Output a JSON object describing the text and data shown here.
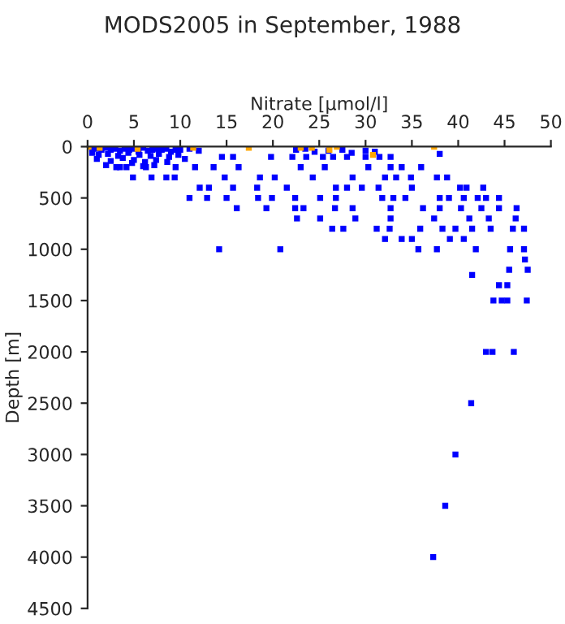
{
  "chart_data": {
    "type": "scatter",
    "title": "MODS2005 in September, 1988",
    "xlabel": "Nitrate [µmol/l]",
    "ylabel": "Depth [m]",
    "xlim": [
      0,
      50
    ],
    "xticks": [
      0,
      5,
      10,
      15,
      20,
      25,
      30,
      35,
      40,
      45,
      50
    ],
    "ylim": [
      4500,
      0
    ],
    "yticks": [
      0,
      500,
      1000,
      1500,
      2000,
      2500,
      3000,
      3500,
      4000,
      4500
    ],
    "marker": "square",
    "grid": false,
    "legend": false,
    "series": [
      {
        "color": "#0000ff",
        "x": [
          0.5,
          1.0,
          1.5,
          2.0,
          2.5,
          3.0,
          3.5,
          4.0,
          4.5,
          5.0,
          5.5,
          6.0,
          6.5,
          7.0,
          7.5,
          8.0,
          8.5,
          9.0,
          9.5,
          10.0,
          11.0,
          12.0,
          0.5,
          1.2,
          2.2,
          3.3,
          4.4,
          5.6,
          6.8,
          7.7,
          8.8,
          9.8,
          1.0,
          2.5,
          3.8,
          5.0,
          6.2,
          7.4,
          8.6,
          10.5,
          22.5,
          23.5,
          24.5,
          26.0,
          27.5,
          28.5,
          30.0,
          31.0,
          38.0,
          2.0,
          3.5,
          4.8,
          6.0,
          7.2,
          14.5,
          15.7,
          19.8,
          22.1,
          23.6,
          25.4,
          26.5,
          28.0,
          30.0,
          31.5,
          32.7,
          3.1,
          4.2,
          6.3,
          9.5,
          11.6,
          13.6,
          16.3,
          23.0,
          25.6,
          30.3,
          32.7,
          33.9,
          36.0,
          4.9,
          6.9,
          8.5,
          9.4,
          14.8,
          18.6,
          20.2,
          24.3,
          28.6,
          32.1,
          33.3,
          34.9,
          37.7,
          38.8,
          12.1,
          13.1,
          15.7,
          18.3,
          21.5,
          26.8,
          28.0,
          29.6,
          31.4,
          35.0,
          40.2,
          40.9,
          42.7,
          11.0,
          12.9,
          15.0,
          18.4,
          19.9,
          22.4,
          25.1,
          26.8,
          31.8,
          33.0,
          34.3,
          38.0,
          39.0,
          40.6,
          42.1,
          43.0,
          44.4,
          16.1,
          19.3,
          22.4,
          23.3,
          26.7,
          28.6,
          32.7,
          36.2,
          38.0,
          40.3,
          42.5,
          44.4,
          46.3,
          22.6,
          25.1,
          28.9,
          32.7,
          37.4,
          41.2,
          43.3,
          46.2,
          26.4,
          27.6,
          31.2,
          32.6,
          35.9,
          38.3,
          39.7,
          41.5,
          43.5,
          45.9,
          47.1,
          32.1,
          33.9,
          35.0,
          39.1,
          40.6,
          14.2,
          20.8,
          35.7,
          37.7,
          41.9,
          45.6,
          47.1,
          47.2,
          45.5,
          47.5,
          41.5,
          44.4,
          45.3,
          43.8,
          44.7,
          45.3,
          47.4,
          43.0,
          43.7,
          46.0,
          41.4,
          39.7,
          38.6,
          37.3
        ],
        "values": [
          20,
          20,
          30,
          10,
          30,
          20,
          40,
          20,
          30,
          20,
          50,
          10,
          40,
          30,
          20,
          30,
          20,
          50,
          30,
          30,
          20,
          40,
          60,
          80,
          70,
          90,
          60,
          80,
          90,
          70,
          100,
          80,
          120,
          140,
          110,
          130,
          150,
          130,
          150,
          120,
          30,
          20,
          50,
          40,
          30,
          60,
          40,
          50,
          70,
          180,
          200,
          160,
          190,
          180,
          100,
          100,
          100,
          100,
          100,
          100,
          100,
          100,
          100,
          100,
          100,
          200,
          200,
          200,
          200,
          200,
          200,
          200,
          200,
          200,
          200,
          200,
          200,
          200,
          300,
          300,
          300,
          300,
          300,
          300,
          300,
          300,
          300,
          300,
          300,
          300,
          300,
          300,
          400,
          400,
          400,
          400,
          400,
          400,
          400,
          400,
          400,
          400,
          400,
          400,
          400,
          500,
          500,
          500,
          500,
          500,
          500,
          500,
          500,
          500,
          500,
          500,
          500,
          500,
          500,
          500,
          500,
          500,
          600,
          600,
          600,
          600,
          600,
          600,
          600,
          600,
          600,
          600,
          600,
          600,
          600,
          700,
          700,
          700,
          700,
          700,
          700,
          700,
          700,
          800,
          800,
          800,
          800,
          800,
          800,
          800,
          800,
          800,
          800,
          800,
          900,
          900,
          900,
          900,
          900,
          1000,
          1000,
          1000,
          1000,
          1000,
          1000,
          1000,
          1100,
          1200,
          1200,
          1250,
          1350,
          1350,
          1500,
          1500,
          1500,
          1500,
          2000,
          2000,
          2000,
          2500,
          3000,
          3500,
          4000
        ]
      },
      {
        "color": "#ffa500",
        "x": [
          0.1,
          1.3,
          5.4,
          11.4,
          17.4,
          23.0,
          24.2,
          26.1,
          26.9,
          30.8,
          37.4
        ],
        "values": [
          0,
          10,
          20,
          10,
          10,
          10,
          10,
          30,
          0,
          80,
          0
        ]
      }
    ]
  }
}
